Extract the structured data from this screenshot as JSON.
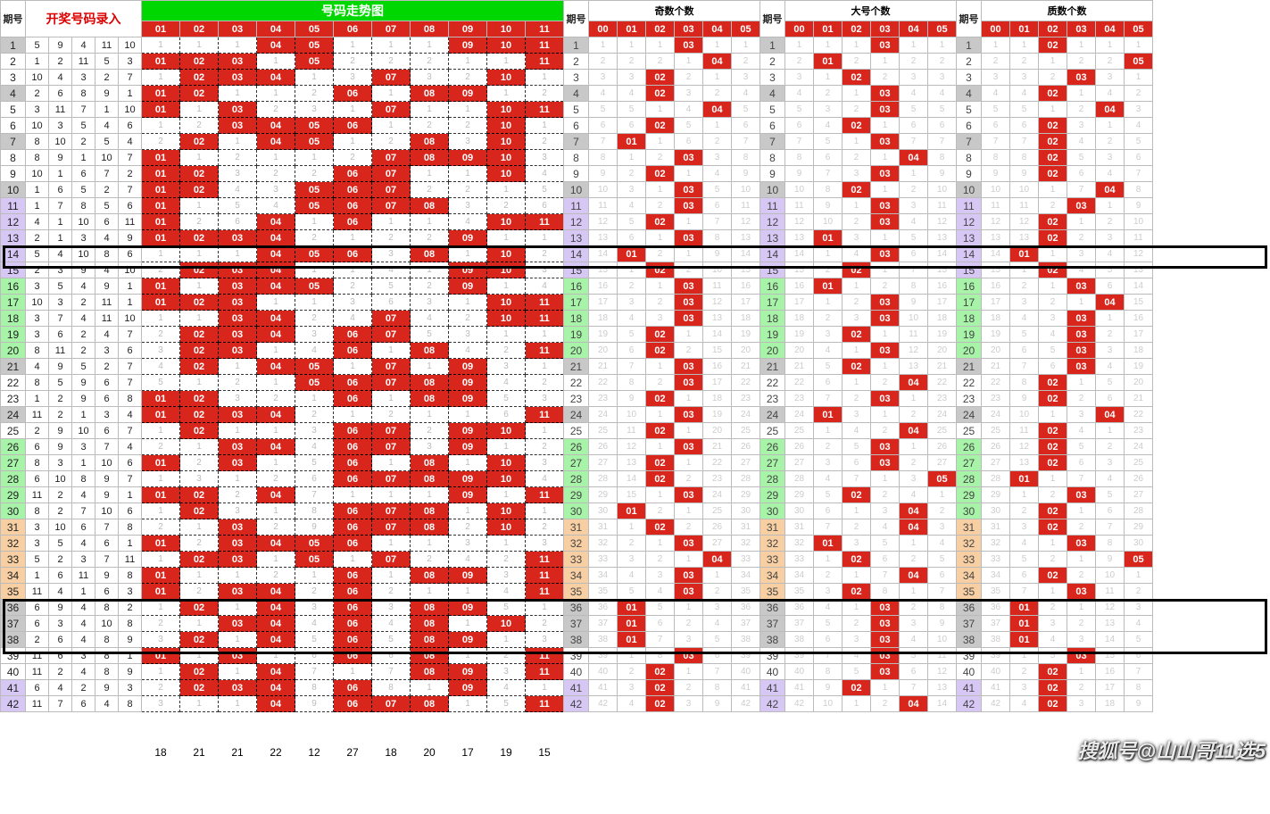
{
  "header": {
    "period_label": "期号",
    "entry_title": "开奖号码录入",
    "trend_title": "号码走势图",
    "trend_labels": [
      "01",
      "02",
      "03",
      "04",
      "05",
      "06",
      "07",
      "08",
      "09",
      "10",
      "11"
    ],
    "stat_groups": [
      {
        "title": "奇数个数",
        "labels": [
          "00",
          "01",
          "02",
          "03",
          "04",
          "05"
        ]
      },
      {
        "title": "大号个数",
        "labels": [
          "00",
          "01",
          "02",
          "03",
          "04",
          "05"
        ]
      },
      {
        "title": "质数个数",
        "labels": [
          "00",
          "01",
          "02",
          "03",
          "04",
          "05"
        ]
      }
    ]
  },
  "colors": {
    "hit_bg": "#d9261c",
    "hit_fg": "#ffffff",
    "header_green": "#00d700",
    "tint_gray": "#c8c8c8",
    "tint_purple": "#d7c7f5",
    "tint_green": "#a7f3a7",
    "tint_orange": "#f7cfa2"
  },
  "trend_count": 11,
  "stat_count": 6,
  "rows": [
    {
      "p": 1,
      "tint": "gray",
      "e": [
        5,
        9,
        4,
        11,
        10
      ],
      "s": [
        3,
        3,
        2
      ]
    },
    {
      "p": 2,
      "tint": "",
      "e": [
        1,
        2,
        11,
        5,
        3
      ],
      "s": [
        4,
        1,
        5
      ]
    },
    {
      "p": 3,
      "tint": "",
      "e": [
        10,
        4,
        3,
        2,
        7
      ],
      "s": [
        2,
        2,
        3
      ]
    },
    {
      "p": 4,
      "tint": "gray",
      "e": [
        2,
        6,
        8,
        9,
        1
      ],
      "s": [
        2,
        3,
        2
      ]
    },
    {
      "p": 5,
      "tint": "",
      "e": [
        3,
        11,
        7,
        1,
        10
      ],
      "s": [
        4,
        3,
        4
      ]
    },
    {
      "p": 6,
      "tint": "",
      "e": [
        10,
        3,
        5,
        4,
        6
      ],
      "s": [
        2,
        2,
        2
      ]
    },
    {
      "p": 7,
      "tint": "gray",
      "e": [
        8,
        10,
        2,
        5,
        4
      ],
      "s": [
        1,
        3,
        2
      ]
    },
    {
      "p": 8,
      "tint": "",
      "e": [
        8,
        9,
        1,
        10,
        7
      ],
      "s": [
        3,
        4,
        2
      ]
    },
    {
      "p": 9,
      "tint": "",
      "e": [
        10,
        1,
        6,
        7,
        2
      ],
      "s": [
        2,
        3,
        2
      ]
    },
    {
      "p": 10,
      "tint": "gray",
      "e": [
        1,
        6,
        5,
        2,
        7
      ],
      "s": [
        3,
        2,
        4
      ]
    },
    {
      "p": 11,
      "tint": "purple",
      "e": [
        1,
        7,
        8,
        5,
        6
      ],
      "s": [
        3,
        3,
        3
      ]
    },
    {
      "p": 12,
      "tint": "purple",
      "e": [
        4,
        1,
        10,
        6,
        11
      ],
      "s": [
        2,
        3,
        2
      ]
    },
    {
      "p": 13,
      "tint": "purple",
      "e": [
        2,
        1,
        3,
        4,
        9
      ],
      "s": [
        3,
        1,
        2
      ]
    },
    {
      "p": 14,
      "tint": "purple",
      "e": [
        5,
        4,
        10,
        8,
        6
      ],
      "s": [
        1,
        3,
        1
      ]
    },
    {
      "p": 15,
      "tint": "purple",
      "e": [
        2,
        3,
        9,
        4,
        10
      ],
      "s": [
        2,
        2,
        2
      ]
    },
    {
      "p": 16,
      "tint": "green",
      "e": [
        3,
        5,
        4,
        9,
        1
      ],
      "s": [
        3,
        1,
        3
      ]
    },
    {
      "p": 17,
      "tint": "green",
      "e": [
        10,
        3,
        2,
        11,
        1
      ],
      "s": [
        3,
        3,
        4
      ]
    },
    {
      "p": 18,
      "tint": "green",
      "e": [
        3,
        7,
        4,
        11,
        10
      ],
      "s": [
        3,
        3,
        3
      ]
    },
    {
      "p": 19,
      "tint": "green",
      "e": [
        3,
        6,
        2,
        4,
        7
      ],
      "s": [
        2,
        2,
        3
      ]
    },
    {
      "p": 20,
      "tint": "green",
      "e": [
        8,
        11,
        2,
        3,
        6
      ],
      "s": [
        2,
        3,
        3
      ]
    },
    {
      "p": 21,
      "tint": "gray",
      "e": [
        4,
        9,
        5,
        2,
        7
      ],
      "s": [
        3,
        2,
        3
      ]
    },
    {
      "p": 22,
      "tint": "",
      "e": [
        8,
        5,
        9,
        6,
        7
      ],
      "s": [
        3,
        4,
        2
      ]
    },
    {
      "p": 23,
      "tint": "",
      "e": [
        1,
        2,
        9,
        6,
        8
      ],
      "s": [
        2,
        3,
        2
      ]
    },
    {
      "p": 24,
      "tint": "gray",
      "e": [
        11,
        2,
        1,
        3,
        4
      ],
      "s": [
        3,
        1,
        4
      ]
    },
    {
      "p": 25,
      "tint": "",
      "e": [
        2,
        9,
        10,
        6,
        7
      ],
      "s": [
        2,
        4,
        2
      ]
    },
    {
      "p": 26,
      "tint": "green",
      "e": [
        6,
        9,
        3,
        7,
        4
      ],
      "s": [
        3,
        3,
        2
      ]
    },
    {
      "p": 27,
      "tint": "green",
      "e": [
        8,
        3,
        1,
        10,
        6
      ],
      "s": [
        2,
        3,
        2
      ]
    },
    {
      "p": 28,
      "tint": "green",
      "e": [
        6,
        10,
        8,
        9,
        7
      ],
      "s": [
        2,
        5,
        1
      ]
    },
    {
      "p": 29,
      "tint": "green",
      "e": [
        11,
        2,
        4,
        9,
        1
      ],
      "s": [
        3,
        2,
        3
      ]
    },
    {
      "p": 30,
      "tint": "green",
      "e": [
        8,
        2,
        7,
        10,
        6
      ],
      "s": [
        1,
        4,
        2
      ]
    },
    {
      "p": 31,
      "tint": "orange",
      "e": [
        3,
        10,
        6,
        7,
        8
      ],
      "s": [
        2,
        4,
        2
      ]
    },
    {
      "p": 32,
      "tint": "orange",
      "e": [
        3,
        5,
        4,
        6,
        1
      ],
      "s": [
        3,
        1,
        3
      ]
    },
    {
      "p": 33,
      "tint": "orange",
      "e": [
        5,
        2,
        3,
        7,
        11
      ],
      "s": [
        4,
        2,
        5
      ]
    },
    {
      "p": 34,
      "tint": "orange",
      "e": [
        1,
        6,
        11,
        9,
        8
      ],
      "s": [
        3,
        4,
        2
      ]
    },
    {
      "p": 35,
      "tint": "orange",
      "e": [
        11,
        4,
        1,
        6,
        3
      ],
      "s": [
        3,
        2,
        3
      ]
    },
    {
      "p": 36,
      "tint": "gray",
      "e": [
        6,
        9,
        4,
        8,
        2
      ],
      "s": [
        1,
        3,
        1
      ]
    },
    {
      "p": 37,
      "tint": "gray",
      "e": [
        6,
        3,
        4,
        10,
        8
      ],
      "s": [
        1,
        3,
        1
      ]
    },
    {
      "p": 38,
      "tint": "gray",
      "e": [
        2,
        6,
        4,
        8,
        9
      ],
      "s": [
        1,
        3,
        1
      ]
    },
    {
      "p": 39,
      "tint": "",
      "e": [
        11,
        6,
        3,
        8,
        1
      ],
      "s": [
        3,
        3,
        3
      ]
    },
    {
      "p": 40,
      "tint": "",
      "e": [
        11,
        2,
        4,
        8,
        9
      ],
      "s": [
        2,
        3,
        2
      ]
    },
    {
      "p": 41,
      "tint": "purple",
      "e": [
        6,
        4,
        2,
        9,
        3
      ],
      "s": [
        2,
        2,
        2
      ]
    },
    {
      "p": 42,
      "tint": "purple",
      "e": [
        11,
        7,
        6,
        4,
        8
      ],
      "s": [
        2,
        4,
        2
      ]
    }
  ],
  "col_sums": [
    18,
    21,
    21,
    22,
    12,
    27,
    18,
    20,
    17,
    19,
    15
  ],
  "highlight_bars": [
    {
      "row": 14
    },
    {
      "rows": [
        36,
        38
      ]
    }
  ],
  "watermark": "搜狐号@山山哥11选5"
}
